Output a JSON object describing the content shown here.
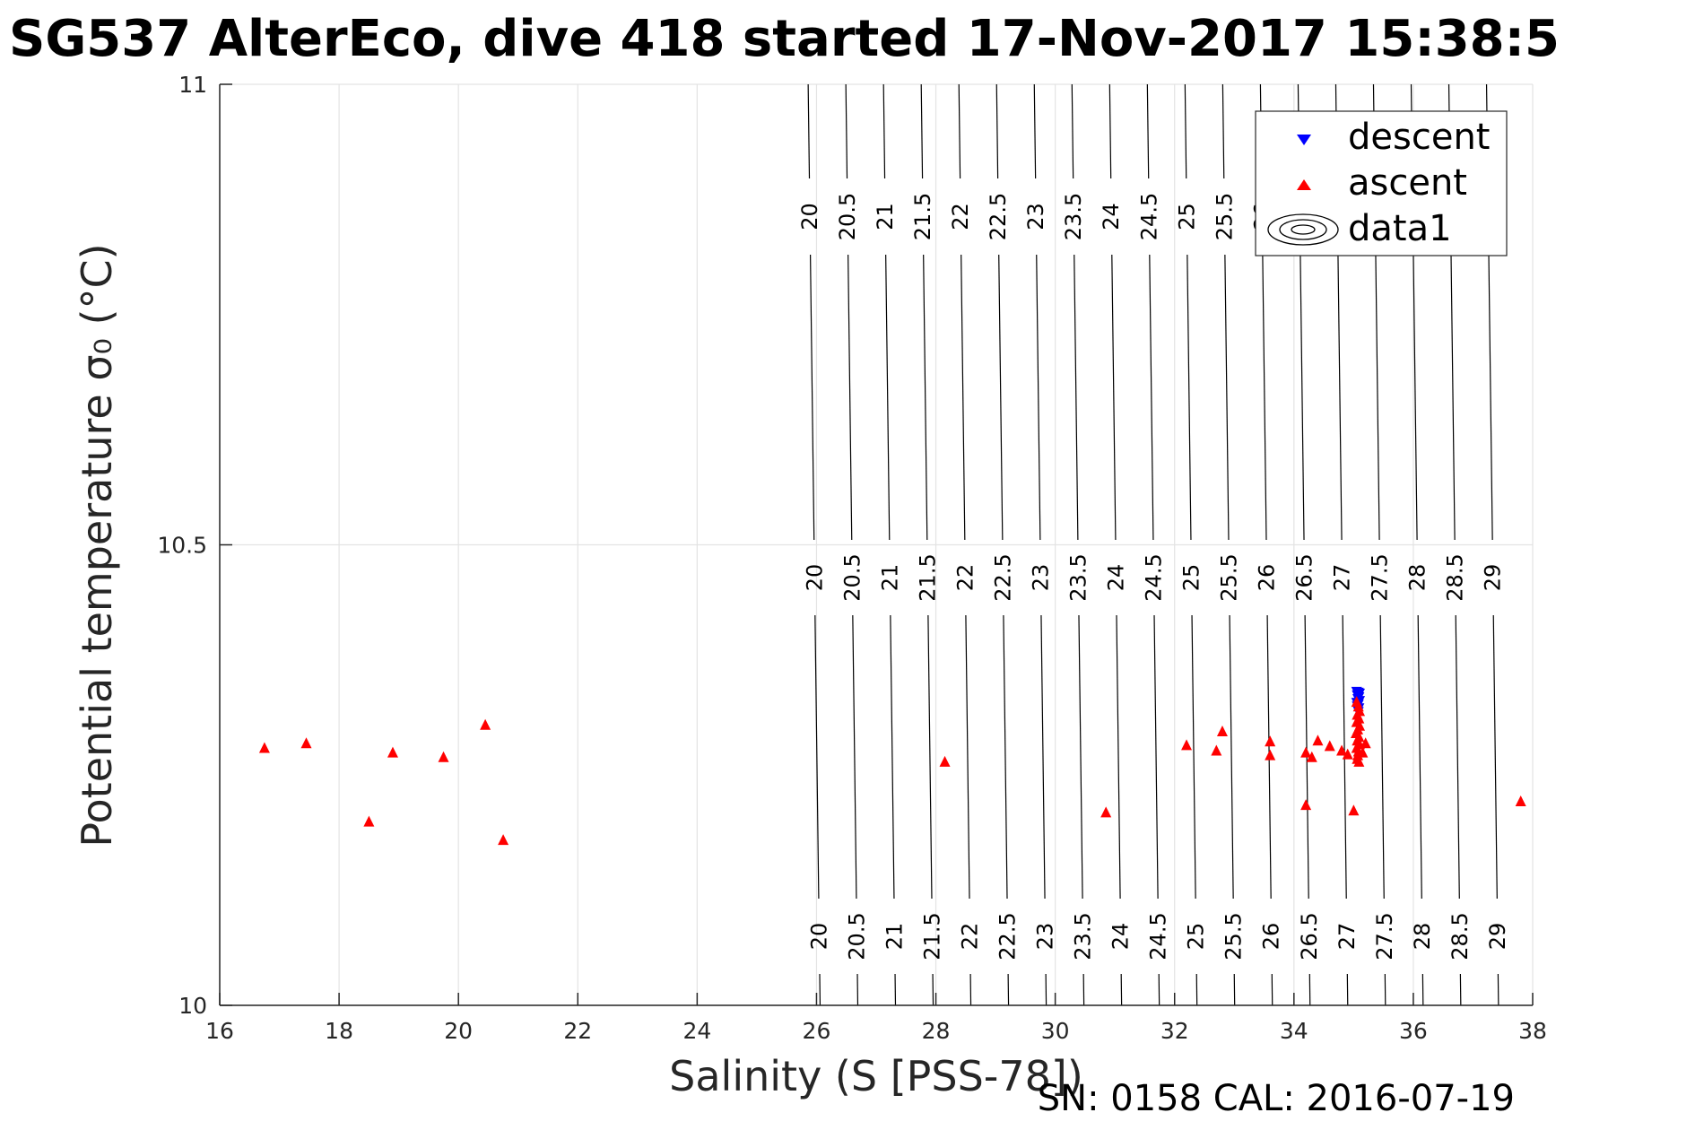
{
  "chart_data": {
    "type": "scatter",
    "title": "SG537 AlterEco, dive 418 started 17-Nov-2017 15:38:5",
    "xlabel": "Salinity (S [PSS-78])",
    "ylabel": "Potential temperature σ₀ (°C)",
    "xlim": [
      16,
      38
    ],
    "ylim": [
      10,
      11
    ],
    "xticks": [
      "16",
      "18",
      "20",
      "22",
      "24",
      "26",
      "28",
      "30",
      "32",
      "34",
      "36",
      "38"
    ],
    "yticks": [
      "10",
      "10.5",
      "11"
    ],
    "grid": true,
    "legend": {
      "position": "top-right",
      "entries": [
        "descent",
        "ascent",
        "data1"
      ]
    },
    "footer": "SN: 0158  CAL: 2016-07-19",
    "contour_levels": [
      "20",
      "20.5",
      "21",
      "21.5",
      "22",
      "22.5",
      "23",
      "23.5",
      "24",
      "24.5",
      "25",
      "25.5",
      "26",
      "26.5",
      "27",
      "27.5",
      "28",
      "28.5",
      "29"
    ],
    "series": [
      {
        "name": "descent",
        "color": "#0000ff",
        "marker": "triangle-down",
        "points": [
          [
            35.05,
            10.34
          ],
          [
            35.08,
            10.339
          ],
          [
            35.1,
            10.338
          ],
          [
            35.06,
            10.336
          ],
          [
            35.09,
            10.334
          ],
          [
            35.07,
            10.332
          ],
          [
            35.1,
            10.33
          ],
          [
            35.05,
            10.328
          ],
          [
            35.08,
            10.326
          ],
          [
            35.06,
            10.324
          ],
          [
            35.09,
            10.322
          ],
          [
            35.07,
            10.32
          ],
          [
            35.08,
            10.318
          ]
        ]
      },
      {
        "name": "ascent",
        "color": "#ff0000",
        "marker": "triangle-up",
        "points": [
          [
            16.75,
            10.28
          ],
          [
            17.45,
            10.285
          ],
          [
            18.9,
            10.275
          ],
          [
            19.75,
            10.27
          ],
          [
            20.45,
            10.305
          ],
          [
            18.5,
            10.2
          ],
          [
            20.75,
            10.18
          ],
          [
            28.15,
            10.265
          ],
          [
            30.85,
            10.21
          ],
          [
            32.2,
            10.283
          ],
          [
            32.7,
            10.277
          ],
          [
            32.8,
            10.298
          ],
          [
            33.6,
            10.287
          ],
          [
            33.6,
            10.272
          ],
          [
            34.2,
            10.275
          ],
          [
            34.3,
            10.27
          ],
          [
            34.4,
            10.288
          ],
          [
            34.6,
            10.282
          ],
          [
            34.8,
            10.277
          ],
          [
            34.9,
            10.273
          ],
          [
            35.2,
            10.285
          ],
          [
            35.15,
            10.275
          ],
          [
            34.2,
            10.218
          ],
          [
            35.0,
            10.212
          ],
          [
            37.8,
            10.222
          ],
          [
            35.05,
            10.33
          ],
          [
            35.08,
            10.325
          ],
          [
            35.1,
            10.32
          ],
          [
            35.06,
            10.316
          ],
          [
            35.09,
            10.312
          ],
          [
            35.05,
            10.308
          ],
          [
            35.1,
            10.304
          ],
          [
            35.07,
            10.3
          ],
          [
            35.04,
            10.296
          ],
          [
            35.09,
            10.292
          ],
          [
            35.06,
            10.288
          ],
          [
            35.1,
            10.284
          ],
          [
            35.05,
            10.28
          ],
          [
            35.08,
            10.276
          ],
          [
            35.07,
            10.272
          ],
          [
            35.06,
            10.268
          ],
          [
            35.09,
            10.265
          ]
        ]
      }
    ]
  }
}
